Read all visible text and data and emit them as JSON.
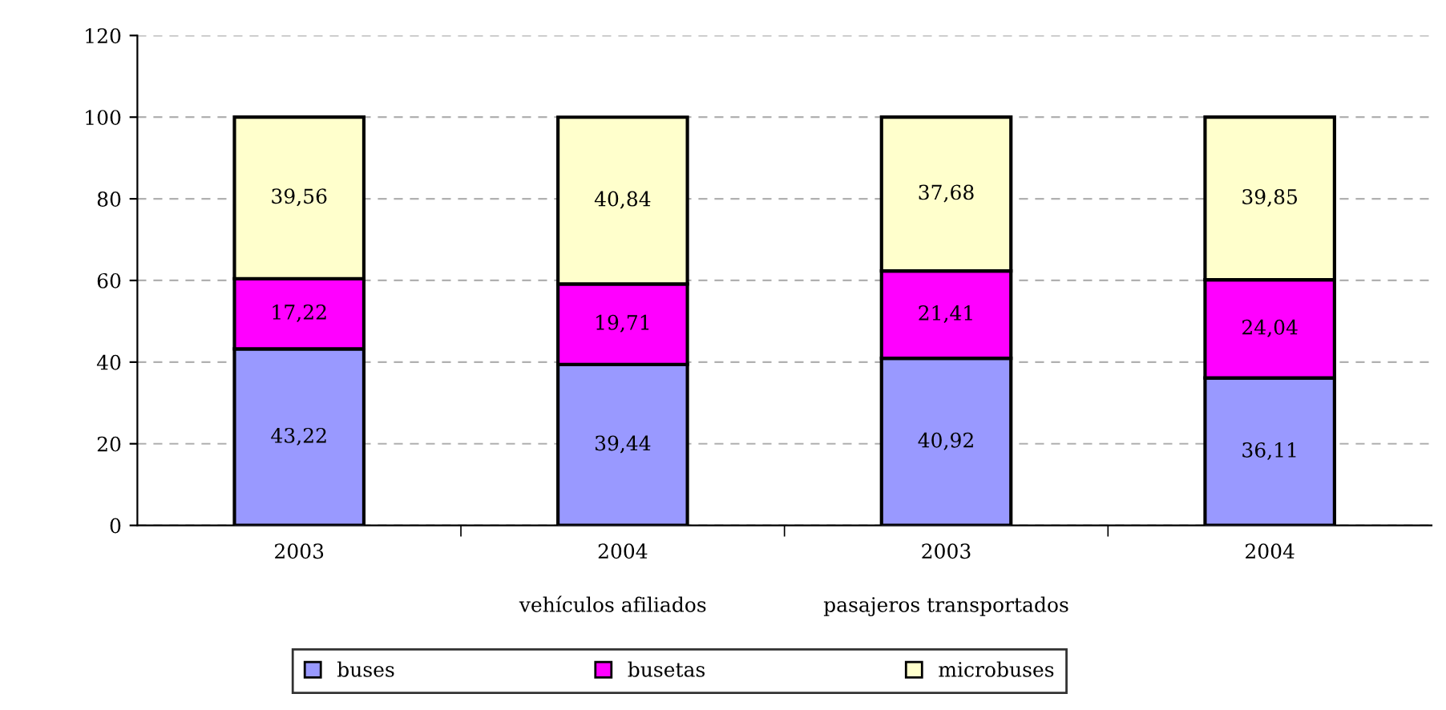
{
  "chart_data": {
    "type": "bar",
    "stacked": true,
    "categories": [
      "2003",
      "2004",
      "2003",
      "2004"
    ],
    "annotations": [
      "vehículos afiliados",
      "pasajeros transportados"
    ],
    "series": [
      {
        "name": "buses",
        "color": "#9999ff",
        "values": [
          43.22,
          39.44,
          40.92,
          36.11
        ],
        "value_labels": [
          "43,22",
          "39,44",
          "40,92",
          "36,11"
        ]
      },
      {
        "name": "busetas",
        "color": "#ff00ff",
        "values": [
          17.22,
          19.71,
          21.41,
          24.04
        ],
        "value_labels": [
          "17,22",
          "19,71",
          "21,41",
          "24,04"
        ]
      },
      {
        "name": "microbuses",
        "color": "#ffffcc",
        "values": [
          39.56,
          40.84,
          37.68,
          39.85
        ],
        "value_labels": [
          "39,56",
          "40,84",
          "37,68",
          "39,85"
        ]
      }
    ],
    "ylim": [
      0,
      120
    ],
    "yticks": [
      0,
      20,
      40,
      60,
      80,
      100,
      120
    ],
    "grid": "y",
    "legend": "bottom"
  }
}
